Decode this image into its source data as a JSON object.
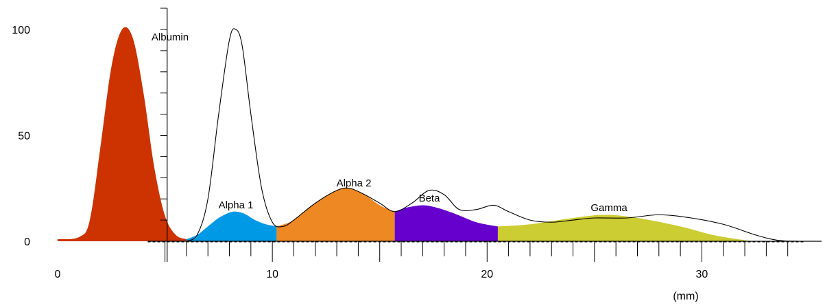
{
  "chart_data": {
    "type": "area",
    "xlabel": "(mm)",
    "xlim": [
      0,
      35
    ],
    "ylim": [
      0,
      100
    ],
    "x_ticks": [
      0,
      10,
      20,
      30
    ],
    "y_ticks": [
      0,
      50,
      100
    ],
    "grid": false,
    "bands": [
      {
        "name": "Albumin",
        "color": "#cc3300",
        "x_range": [
          0,
          6.0
        ],
        "x": [
          0,
          1.0,
          1.5,
          2.0,
          2.5,
          3.0,
          3.5,
          4.0,
          4.5,
          5.0,
          5.5,
          6.0
        ],
        "y": [
          1,
          2,
          10,
          45,
          82,
          100,
          96,
          70,
          35,
          12,
          3,
          1
        ]
      },
      {
        "name": "Alpha 1",
        "color": "#0099e6",
        "x_range": [
          6.0,
          10.2
        ],
        "x": [
          6.0,
          6.5,
          7.0,
          7.5,
          8.0,
          8.3,
          8.7,
          9.2,
          9.7,
          10.2
        ],
        "y": [
          1,
          3,
          7,
          11,
          13.5,
          14,
          13,
          10,
          8,
          7
        ]
      },
      {
        "name": "Alpha 2",
        "color": "#ee8822",
        "x_range": [
          10.2,
          15.7
        ],
        "x": [
          10.2,
          11.0,
          12.0,
          13.0,
          13.6,
          14.3,
          15.0,
          15.7
        ],
        "y": [
          7,
          10,
          18,
          24,
          25,
          22,
          17,
          14
        ]
      },
      {
        "name": "Beta",
        "color": "#6600cc",
        "x_range": [
          15.7,
          20.5
        ],
        "x": [
          15.7,
          16.3,
          17.0,
          17.6,
          18.5,
          19.5,
          20.5
        ],
        "y": [
          14,
          16,
          17,
          16,
          13,
          9,
          7
        ]
      },
      {
        "name": "Gamma",
        "color": "#cccc33",
        "x_range": [
          20.5,
          32.5
        ],
        "x": [
          20.5,
          22.0,
          24.0,
          25.5,
          27.0,
          29.0,
          30.5,
          32.0,
          32.5
        ],
        "y": [
          7,
          8,
          11,
          12.5,
          11,
          7,
          3,
          0.5,
          0
        ]
      }
    ],
    "reference_curve": {
      "name": "",
      "x": [
        6.0,
        6.5,
        7.0,
        7.5,
        8.0,
        8.3,
        8.6,
        9.0,
        9.5,
        10.0,
        10.5,
        11.0,
        12.0,
        13.0,
        13.6,
        14.3,
        15.0,
        15.7,
        16.5,
        17.3,
        18.0,
        18.7,
        19.5,
        20.3,
        21.0,
        22.0,
        23.0,
        24.0,
        25.0,
        26.5,
        28.0,
        29.5,
        31.0,
        32.5,
        33.5,
        34.5
      ],
      "y": [
        0,
        3,
        20,
        60,
        95,
        100,
        92,
        60,
        25,
        9,
        7,
        10,
        18,
        24,
        25,
        22,
        18,
        14,
        18,
        24,
        22,
        15,
        15,
        17,
        14,
        10,
        9,
        10,
        11,
        11,
        12.5,
        11,
        8,
        3,
        0.5,
        0
      ]
    }
  }
}
